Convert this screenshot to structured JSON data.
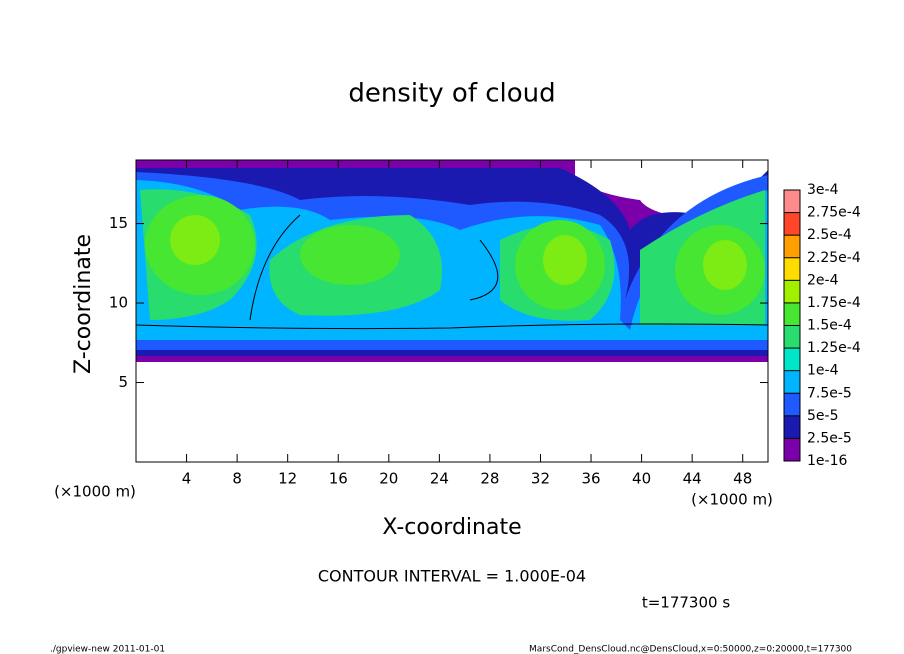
{
  "chart_data": {
    "type": "contour",
    "title": "density of cloud",
    "x_label": "X-coordinate",
    "y_label": "Z-coordinate",
    "x_unit": "(×1000 m)",
    "y_unit": "(×1000 m)",
    "xlim": [
      0,
      50
    ],
    "xticks": [
      4,
      8,
      12,
      16,
      20,
      24,
      28,
      32,
      36,
      40,
      44,
      48
    ],
    "ylim": [
      0,
      19
    ],
    "yticks": [
      5,
      10,
      15
    ],
    "annotations": [
      "CONTOUR INTERVAL = 1.000E-04",
      "t=177300 s"
    ],
    "footer_left": "./gpview-new  2011-01-01",
    "footer_right": "MarsCond_DensCloud.nc@DensCloud,x=0:50000,z=0:20000,t=177300",
    "colorbar": {
      "levels": [
        {
          "value": 1e-16,
          "label": "1e-16"
        },
        {
          "value": 2.5e-05,
          "label": "2.5e-5"
        },
        {
          "value": 5e-05,
          "label": "5e-5"
        },
        {
          "value": 7.5e-05,
          "label": "7.5e-5"
        },
        {
          "value": 0.0001,
          "label": "1e-4"
        },
        {
          "value": 0.000125,
          "label": "1.25e-4"
        },
        {
          "value": 0.00015,
          "label": "1.5e-4"
        },
        {
          "value": 0.000175,
          "label": "1.75e-4"
        },
        {
          "value": 0.0002,
          "label": "2e-4"
        },
        {
          "value": 0.000225,
          "label": "2.25e-4"
        },
        {
          "value": 0.00025,
          "label": "2.5e-4"
        },
        {
          "value": 0.000275,
          "label": "2.75e-4"
        },
        {
          "value": 0.0003,
          "label": "3e-4"
        }
      ],
      "colors": [
        "#7b00aa",
        "#1a1ab0",
        "#1e5aff",
        "#00b4ff",
        "#00e6c8",
        "#28dc6e",
        "#46e632",
        "#a0f000",
        "#ffdc00",
        "#ffa000",
        "#ff4628",
        "#ff8c8c"
      ]
    }
  }
}
